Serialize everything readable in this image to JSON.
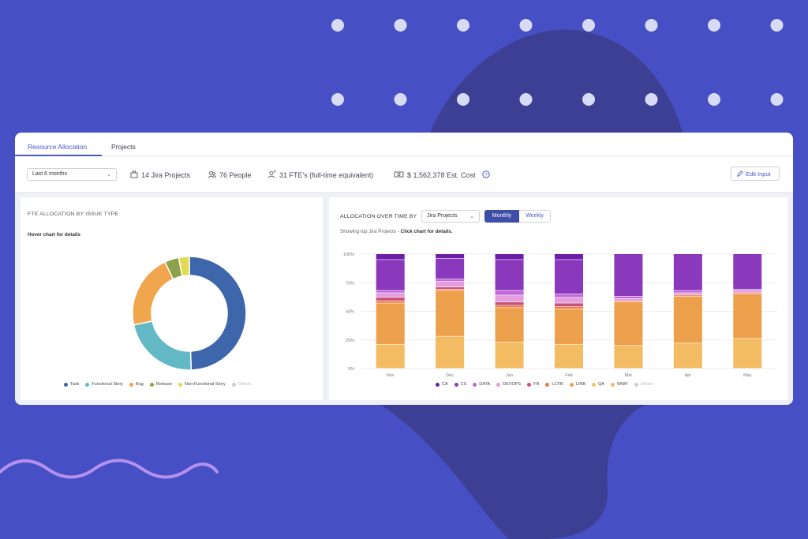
{
  "tabs": [
    {
      "label": "Resource Allocation",
      "active": true
    },
    {
      "label": "Projects",
      "active": false
    }
  ],
  "toolbar": {
    "period": "Last 6 months",
    "projects": "14 Jira Projects",
    "people": "76 People",
    "fte": "31 FTE's (full-time equivalent)",
    "cost": "$ 1,562,378 Est. Cost",
    "edit_label": "Edit Input",
    "icons": [
      "briefcase-icon",
      "people-icon",
      "fte-icon",
      "money-icon",
      "help-icon",
      "pencil-icon"
    ]
  },
  "left_panel": {
    "title": "FTE ALLOCATION BY ISSUE TYPE",
    "subtitle": "Hover chart for details"
  },
  "right_panel": {
    "title": "ALLOCATION OVER TIME BY",
    "group_select": "Jira Projects",
    "toggle": [
      {
        "label": "Monthly",
        "active": true
      },
      {
        "label": "Weekly",
        "active": false
      }
    ],
    "subtitle_muted": "Showing top Jira Projects - ",
    "subtitle_bold": "Click chart for details."
  },
  "chart_data": [
    {
      "type": "pie",
      "slices": [
        {
          "name": "Task",
          "value": 49,
          "color": "#3d66ab"
        },
        {
          "name": "Functional Story",
          "value": 22,
          "color": "#62b9c5"
        },
        {
          "name": "Bug",
          "value": 21,
          "color": "#efa64d"
        },
        {
          "name": "Release",
          "value": 4,
          "color": "#8da14a"
        },
        {
          "name": "Non-Functional Story",
          "value": 3,
          "color": "#e2d954"
        },
        {
          "name": "Others",
          "value": 0,
          "color": "#cccccc"
        }
      ]
    },
    {
      "type": "bar",
      "stacked": true,
      "categories": [
        "Nov",
        "Dec",
        "Jan",
        "Feb",
        "Mar",
        "Apr",
        "May"
      ],
      "ytick_labels": [
        "0%",
        "25%",
        "50%",
        "75%",
        "100%"
      ],
      "ylim": [
        0,
        100
      ],
      "grid": true,
      "series": [
        {
          "name": "WWF",
          "color": "#f3bb62",
          "values": [
            21,
            28,
            23,
            21,
            20,
            22,
            26
          ]
        },
        {
          "name": "QA",
          "color": "#f0c75e",
          "values": [
            0,
            0,
            0,
            0,
            0,
            0,
            0
          ]
        },
        {
          "name": "LINB",
          "color": "#eda04b",
          "values": [
            36,
            40,
            30,
            31,
            38,
            41,
            39
          ]
        },
        {
          "name": "LCFR",
          "color": "#ec7b45",
          "values": [
            2,
            1,
            2,
            2,
            1,
            1,
            1
          ]
        },
        {
          "name": "FR",
          "color": "#c9527a",
          "values": [
            3,
            2,
            3,
            3,
            0,
            0,
            0
          ]
        },
        {
          "name": "DEVOPS",
          "color": "#e39ee0",
          "values": [
            4,
            5,
            6,
            5,
            2,
            2,
            2
          ]
        },
        {
          "name": "DATA",
          "color": "#c168d9",
          "values": [
            2,
            2,
            4,
            3,
            2,
            2,
            1
          ]
        },
        {
          "name": "CS",
          "color": "#8b39bc",
          "values": [
            27,
            18,
            27,
            30,
            37,
            32,
            31
          ]
        },
        {
          "name": "CA",
          "color": "#6a1fa6",
          "values": [
            5,
            4,
            5,
            5,
            0,
            0,
            0
          ]
        },
        {
          "name": "Others",
          "color": "#cccccc",
          "values": [
            0,
            0,
            0,
            0,
            0,
            0,
            0
          ]
        }
      ],
      "legend_order": [
        "CA",
        "CS",
        "DATA",
        "DEVOPS",
        "FR",
        "LCFR",
        "LINB",
        "QA",
        "WWF",
        "Others"
      ]
    }
  ]
}
